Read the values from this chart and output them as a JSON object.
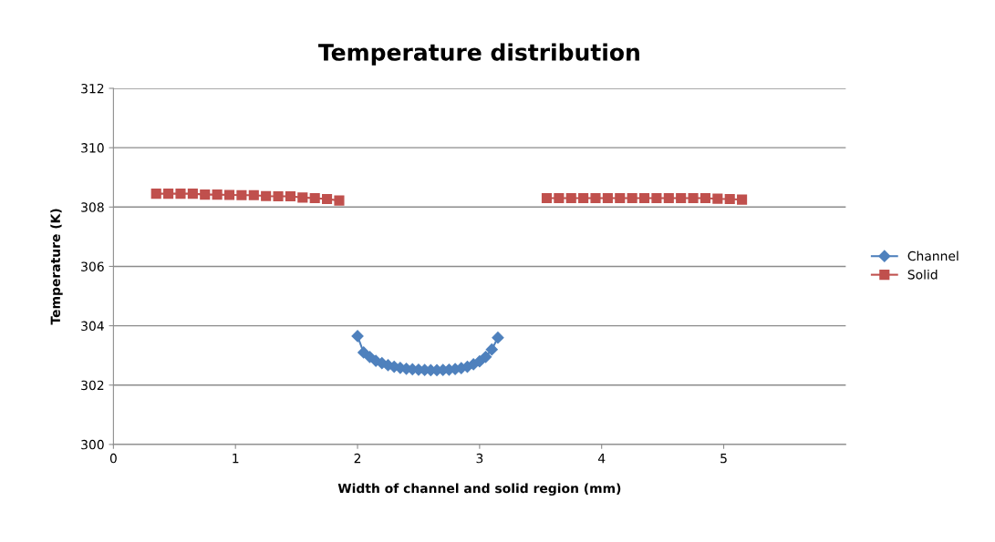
{
  "chart_data": {
    "type": "line",
    "title": "Temperature distribution",
    "xlabel": "Width of channel and solid region (mm)",
    "ylabel": "Temperature (K)",
    "xlim": [
      0,
      6
    ],
    "xticks": [
      0,
      1,
      2,
      3,
      4,
      5
    ],
    "ylim": [
      300,
      312
    ],
    "yticks": [
      300,
      302,
      304,
      306,
      308,
      310,
      312
    ],
    "grid": "y",
    "legend": "right",
    "line_style": "solid",
    "series": [
      {
        "name": "Channel",
        "color": "#4f81bd",
        "marker": "diamond",
        "x": [
          2.0,
          2.05,
          2.1,
          2.15,
          2.2,
          2.25,
          2.3,
          2.35,
          2.4,
          2.45,
          2.5,
          2.55,
          2.6,
          2.65,
          2.7,
          2.75,
          2.8,
          2.85,
          2.9,
          2.95,
          3.0,
          3.05,
          3.1,
          3.15
        ],
        "values": [
          303.65,
          303.1,
          302.95,
          302.82,
          302.74,
          302.67,
          302.62,
          302.58,
          302.55,
          302.53,
          302.52,
          302.51,
          302.5,
          302.5,
          302.51,
          302.52,
          302.54,
          302.57,
          302.62,
          302.7,
          302.8,
          302.95,
          303.2,
          303.6
        ]
      },
      {
        "name": "Solid",
        "color": "#c0504d",
        "marker": "square",
        "x": [
          0.35,
          0.45,
          0.55,
          0.65,
          0.75,
          0.85,
          0.95,
          1.05,
          1.15,
          1.25,
          1.35,
          1.45,
          1.55,
          1.65,
          1.75,
          1.85,
          2.7,
          3.55,
          3.65,
          3.75,
          3.85,
          3.95,
          4.05,
          4.15,
          4.25,
          4.35,
          4.45,
          4.55,
          4.65,
          4.75,
          4.85,
          4.95,
          5.05,
          5.15
        ],
        "values": [
          308.45,
          308.45,
          308.45,
          308.45,
          308.42,
          308.42,
          308.41,
          308.4,
          308.4,
          308.37,
          308.36,
          308.36,
          308.32,
          308.3,
          308.27,
          308.22,
          null,
          308.3,
          308.3,
          308.3,
          308.3,
          308.3,
          308.3,
          308.3,
          308.3,
          308.3,
          308.3,
          308.3,
          308.3,
          308.3,
          308.3,
          308.28,
          308.27,
          308.25
        ]
      }
    ]
  }
}
